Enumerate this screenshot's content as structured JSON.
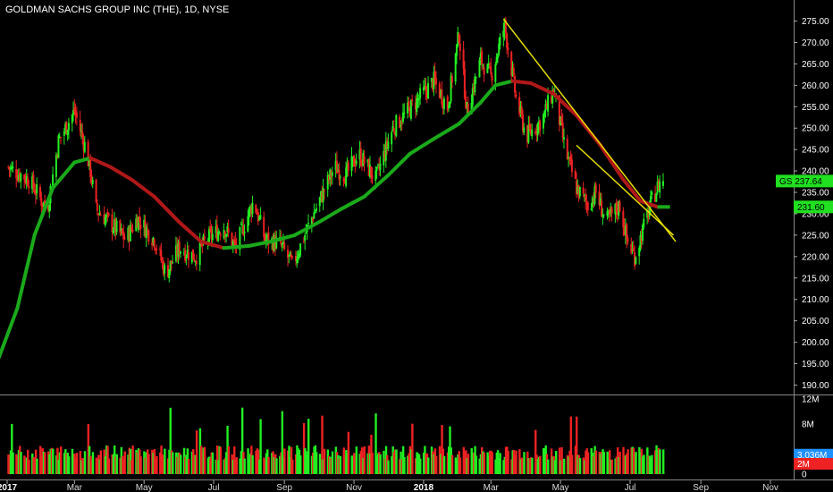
{
  "header": {
    "title": "GOLDMAN SACHS GROUP INC (THE), 1D, NYSE"
  },
  "colors": {
    "background": "#000000",
    "up": "#22ee22",
    "down": "#ee2222",
    "ma_up": "#1aaa1a",
    "ma_down": "#b01818",
    "trendline": "#e8e000",
    "gs_tag": "#20e020",
    "ma_tag": "#20e020",
    "volume_ma_tag": "#1e90ff",
    "volume_tag": "#ee2222"
  },
  "chart_data": [
    {
      "type": "candlestick",
      "title": "GOLDMAN SACHS GROUP INC (THE), 1D, NYSE",
      "x_ticks": [
        {
          "label": "2017",
          "date": "2017-01-01",
          "bold": true
        },
        {
          "label": "Mar",
          "date": "2017-03-01"
        },
        {
          "label": "May",
          "date": "2017-05-01"
        },
        {
          "label": "Jul",
          "date": "2017-07-01"
        },
        {
          "label": "Sep",
          "date": "2017-09-01"
        },
        {
          "label": "Nov",
          "date": "2017-11-01"
        },
        {
          "label": "2018",
          "date": "2018-01-01",
          "bold": true
        },
        {
          "label": "Mar",
          "date": "2018-03-01"
        },
        {
          "label": "May",
          "date": "2018-05-01"
        },
        {
          "label": "Jul",
          "date": "2018-07-01"
        },
        {
          "label": "Sep",
          "date": "2018-09-01"
        },
        {
          "label": "Nov",
          "date": "2018-11-01"
        }
      ],
      "y_ticks": [
        "190.00",
        "195.00",
        "200.00",
        "205.00",
        "210.00",
        "215.00",
        "220.00",
        "225.00",
        "230.00",
        "235.00",
        "240.00",
        "245.00",
        "250.00",
        "255.00",
        "260.00",
        "265.00",
        "270.00",
        "275.00"
      ],
      "ylim": [
        188,
        277
      ],
      "price_path": [
        {
          "date": "2017-01-01",
          "close": 241
        },
        {
          "date": "2017-01-20",
          "close": 238
        },
        {
          "date": "2017-02-05",
          "close": 231
        },
        {
          "date": "2017-02-15",
          "close": 247
        },
        {
          "date": "2017-03-01",
          "close": 254
        },
        {
          "date": "2017-03-10",
          "close": 246
        },
        {
          "date": "2017-03-15",
          "close": 240
        },
        {
          "date": "2017-03-20",
          "close": 231
        },
        {
          "date": "2017-04-01",
          "close": 228
        },
        {
          "date": "2017-04-15",
          "close": 224
        },
        {
          "date": "2017-04-25",
          "close": 229
        },
        {
          "date": "2017-05-10",
          "close": 224
        },
        {
          "date": "2017-05-20",
          "close": 216
        },
        {
          "date": "2017-06-01",
          "close": 222
        },
        {
          "date": "2017-06-15",
          "close": 220
        },
        {
          "date": "2017-06-25",
          "close": 224
        },
        {
          "date": "2017-07-10",
          "close": 227
        },
        {
          "date": "2017-07-20",
          "close": 222
        },
        {
          "date": "2017-08-05",
          "close": 233
        },
        {
          "date": "2017-08-15",
          "close": 224
        },
        {
          "date": "2017-08-28",
          "close": 223
        },
        {
          "date": "2017-09-08",
          "close": 218
        },
        {
          "date": "2017-09-25",
          "close": 229
        },
        {
          "date": "2017-10-15",
          "close": 241
        },
        {
          "date": "2017-10-25",
          "close": 239
        },
        {
          "date": "2017-11-05",
          "close": 244
        },
        {
          "date": "2017-11-20",
          "close": 238
        },
        {
          "date": "2017-12-05",
          "close": 250
        },
        {
          "date": "2017-12-25",
          "close": 256
        },
        {
          "date": "2018-01-10",
          "close": 261
        },
        {
          "date": "2018-01-22",
          "close": 255
        },
        {
          "date": "2018-02-01",
          "close": 272
        },
        {
          "date": "2018-02-08",
          "close": 254
        },
        {
          "date": "2018-02-20",
          "close": 266
        },
        {
          "date": "2018-03-01",
          "close": 262
        },
        {
          "date": "2018-03-13",
          "close": 274
        },
        {
          "date": "2018-03-23",
          "close": 257
        },
        {
          "date": "2018-04-01",
          "close": 248
        },
        {
          "date": "2018-04-15",
          "close": 252
        },
        {
          "date": "2018-04-25",
          "close": 259
        },
        {
          "date": "2018-05-05",
          "close": 245
        },
        {
          "date": "2018-05-15",
          "close": 236
        },
        {
          "date": "2018-05-25",
          "close": 232
        },
        {
          "date": "2018-06-01",
          "close": 235
        },
        {
          "date": "2018-06-10",
          "close": 228
        },
        {
          "date": "2018-06-22",
          "close": 232
        },
        {
          "date": "2018-06-28",
          "close": 224
        },
        {
          "date": "2018-07-05",
          "close": 220
        },
        {
          "date": "2018-07-12",
          "close": 226
        },
        {
          "date": "2018-07-20",
          "close": 233
        },
        {
          "date": "2018-07-28",
          "close": 238
        }
      ],
      "moving_average": [
        {
          "date": "2016-12-20",
          "value": 193
        },
        {
          "date": "2017-01-10",
          "value": 208
        },
        {
          "date": "2017-01-25",
          "value": 225
        },
        {
          "date": "2017-02-10",
          "value": 236
        },
        {
          "date": "2017-03-01",
          "value": 242
        },
        {
          "date": "2017-03-15",
          "value": 243
        },
        {
          "date": "2017-04-01",
          "value": 241
        },
        {
          "date": "2017-04-20",
          "value": 238
        },
        {
          "date": "2017-05-10",
          "value": 234
        },
        {
          "date": "2017-06-01",
          "value": 228
        },
        {
          "date": "2017-06-20",
          "value": 223.5
        },
        {
          "date": "2017-07-10",
          "value": 222
        },
        {
          "date": "2017-08-01",
          "value": 222.5
        },
        {
          "date": "2017-08-20",
          "value": 223.5
        },
        {
          "date": "2017-09-10",
          "value": 225
        },
        {
          "date": "2017-10-01",
          "value": 228
        },
        {
          "date": "2017-10-20",
          "value": 231
        },
        {
          "date": "2017-11-10",
          "value": 234
        },
        {
          "date": "2017-12-01",
          "value": 239
        },
        {
          "date": "2017-12-20",
          "value": 244
        },
        {
          "date": "2018-01-10",
          "value": 247.5
        },
        {
          "date": "2018-02-01",
          "value": 251
        },
        {
          "date": "2018-02-20",
          "value": 256
        },
        {
          "date": "2018-03-05",
          "value": 260
        },
        {
          "date": "2018-03-20",
          "value": 261
        },
        {
          "date": "2018-04-05",
          "value": 260.5
        },
        {
          "date": "2018-04-25",
          "value": 258
        },
        {
          "date": "2018-05-15",
          "value": 253
        },
        {
          "date": "2018-06-05",
          "value": 246
        },
        {
          "date": "2018-06-25",
          "value": 238
        },
        {
          "date": "2018-07-10",
          "value": 233
        },
        {
          "date": "2018-07-25",
          "value": 231.6
        }
      ],
      "trendlines": [
        [
          {
            "date": "2018-03-12",
            "price": 275.5
          },
          {
            "date": "2018-08-10",
            "price": 223.5
          }
        ],
        [
          {
            "date": "2018-05-15",
            "price": 246
          },
          {
            "date": "2018-08-08",
            "price": 225
          }
        ]
      ],
      "price_tags": [
        {
          "symbol": "GS",
          "value": "237.64"
        },
        {
          "symbol": "",
          "value": "231.60"
        }
      ]
    },
    {
      "type": "bar",
      "title": "Volume",
      "y_ticks": [
        "12M",
        "8M",
        "0"
      ],
      "ylim": [
        0,
        12000000
      ],
      "last_values": [
        "3.036M",
        "2M"
      ]
    }
  ]
}
